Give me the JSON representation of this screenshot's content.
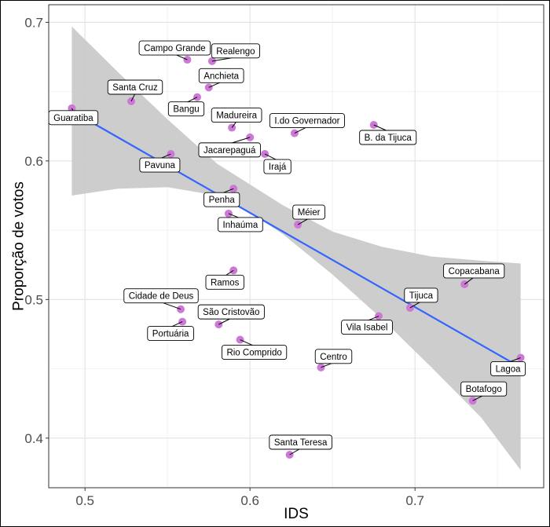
{
  "chart_data": {
    "type": "scatter",
    "xlabel": "IDS",
    "ylabel": "Proporção de votos",
    "xlim": [
      0.478,
      0.778
    ],
    "ylim": [
      0.3642,
      0.7127
    ],
    "x_ticks": [
      0.5,
      0.6,
      0.7
    ],
    "x_tick_labels": [
      "0.5",
      "0.6",
      "0.7"
    ],
    "y_ticks": [
      0.4,
      0.5,
      0.6,
      0.7
    ],
    "y_tick_labels": [
      "0.4",
      "0.5",
      "0.6",
      "0.7"
    ],
    "grid": true,
    "colors": {
      "point": "#cc79d6",
      "line": "#3366ff",
      "ribbon": "#c8c8c8",
      "grid_major": "#e4e4e4",
      "grid_minor": "#f2f2f2",
      "panel_border": "#333333"
    },
    "points": [
      {
        "name": "Guaratiba",
        "x": 0.492,
        "y": 0.638
      },
      {
        "name": "Campo Grande",
        "x": 0.562,
        "y": 0.673
      },
      {
        "name": "Realengo",
        "x": 0.577,
        "y": 0.672
      },
      {
        "name": "Santa Cruz",
        "x": 0.528,
        "y": 0.643
      },
      {
        "name": "Anchieta",
        "x": 0.575,
        "y": 0.653
      },
      {
        "name": "Bangu",
        "x": 0.568,
        "y": 0.646
      },
      {
        "name": "Madureira",
        "x": 0.589,
        "y": 0.624
      },
      {
        "name": "Jacarepaguá",
        "x": 0.6,
        "y": 0.617
      },
      {
        "name": "I.do Governador",
        "x": 0.627,
        "y": 0.62
      },
      {
        "name": "B. da Tijuca",
        "x": 0.675,
        "y": 0.626
      },
      {
        "name": "Pavuna",
        "x": 0.552,
        "y": 0.605
      },
      {
        "name": "Irajá",
        "x": 0.609,
        "y": 0.605
      },
      {
        "name": "Penha",
        "x": 0.59,
        "y": 0.58
      },
      {
        "name": "Inhaúma",
        "x": 0.587,
        "y": 0.562
      },
      {
        "name": "Méier",
        "x": 0.629,
        "y": 0.554
      },
      {
        "name": "Ramos",
        "x": 0.59,
        "y": 0.521
      },
      {
        "name": "Copacabana",
        "x": 0.73,
        "y": 0.511
      },
      {
        "name": "Cidade de Deus",
        "x": 0.558,
        "y": 0.493
      },
      {
        "name": "Tijuca",
        "x": 0.697,
        "y": 0.494
      },
      {
        "name": "São Cristovão",
        "x": 0.581,
        "y": 0.482
      },
      {
        "name": "Portuária",
        "x": 0.559,
        "y": 0.484
      },
      {
        "name": "Vila Isabel",
        "x": 0.678,
        "y": 0.488
      },
      {
        "name": "Rio Comprido",
        "x": 0.594,
        "y": 0.471
      },
      {
        "name": "Centro",
        "x": 0.643,
        "y": 0.451
      },
      {
        "name": "Lagoa",
        "x": 0.764,
        "y": 0.458
      },
      {
        "name": "Botafogo",
        "x": 0.735,
        "y": 0.427
      },
      {
        "name": "Santa Teresa",
        "x": 0.624,
        "y": 0.388
      }
    ],
    "regression": {
      "x": [
        0.492,
        0.764
      ],
      "y": [
        0.636,
        0.451
      ]
    },
    "confidence_band": {
      "x": [
        0.492,
        0.52,
        0.55,
        0.58,
        0.6,
        0.62,
        0.65,
        0.68,
        0.71,
        0.74,
        0.764
      ],
      "lower": [
        0.575,
        0.58,
        0.581,
        0.575,
        0.563,
        0.547,
        0.518,
        0.486,
        0.451,
        0.415,
        0.377
      ],
      "upper": [
        0.697,
        0.664,
        0.63,
        0.598,
        0.583,
        0.568,
        0.549,
        0.538,
        0.531,
        0.528,
        0.526
      ]
    }
  }
}
